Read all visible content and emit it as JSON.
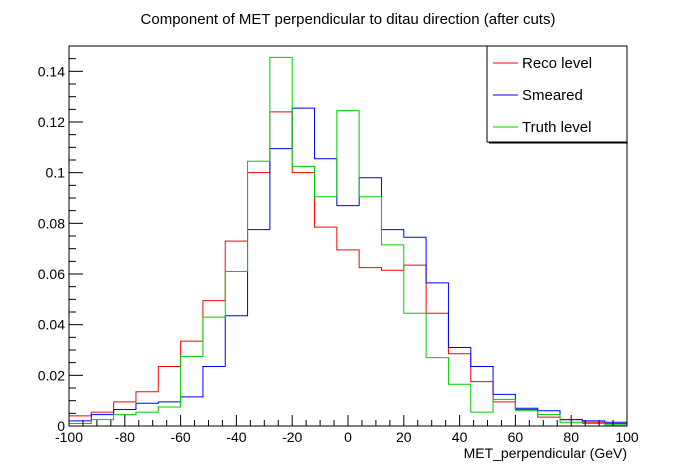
{
  "chart_data": {
    "type": "line",
    "title": "Component of MET perpendicular to ditau direction (after cuts)",
    "xlabel": "MET_perpendicular (GeV)",
    "ylabel": "",
    "xlim": [
      -100,
      100
    ],
    "ylim": [
      0,
      0.15
    ],
    "x_ticks": [
      "-100",
      "-80",
      "-60",
      "-40",
      "-20",
      "0",
      "20",
      "40",
      "60",
      "80",
      "100"
    ],
    "y_ticks": [
      "0",
      "0.02",
      "0.04",
      "0.06",
      "0.08",
      "0.1",
      "0.12",
      "0.14"
    ],
    "grid": false,
    "legend_position": "top-right",
    "bin_edges": [
      -100,
      -92,
      -84,
      -76,
      -68,
      -60,
      -52,
      -44,
      -36,
      -28,
      -20,
      -12,
      -4,
      4,
      12,
      20,
      28,
      36,
      44,
      52,
      60,
      68,
      76,
      84,
      92,
      100
    ],
    "series": [
      {
        "name": "Reco level",
        "color": "#ff0000",
        "values": [
          0.004,
          0.0055,
          0.0095,
          0.0135,
          0.0235,
          0.0335,
          0.0495,
          0.073,
          0.1,
          0.124,
          0.1,
          0.0785,
          0.0695,
          0.0625,
          0.0615,
          0.0635,
          0.0445,
          0.0285,
          0.0175,
          0.0095,
          0.0065,
          0.0035,
          0.0025,
          0.0015,
          0.001
        ]
      },
      {
        "name": "Smeared",
        "color": "#0000ff",
        "values": [
          0.002,
          0.0045,
          0.0065,
          0.009,
          0.0095,
          0.0115,
          0.0235,
          0.0435,
          0.0775,
          0.1095,
          0.1255,
          0.1055,
          0.087,
          0.098,
          0.0775,
          0.0745,
          0.0565,
          0.031,
          0.0235,
          0.0125,
          0.007,
          0.006,
          0.0025,
          0.002,
          0.0015
        ]
      },
      {
        "name": "Truth level",
        "color": "#00cc00",
        "values": [
          0.001,
          0.0025,
          0.0045,
          0.0055,
          0.0075,
          0.0275,
          0.043,
          0.061,
          0.1045,
          0.1455,
          0.1025,
          0.0905,
          0.1245,
          0.0905,
          0.0715,
          0.0445,
          0.027,
          0.0165,
          0.0055,
          0.0105,
          0.006,
          0.0045,
          0.0015,
          0.001,
          0.0005
        ]
      }
    ]
  }
}
